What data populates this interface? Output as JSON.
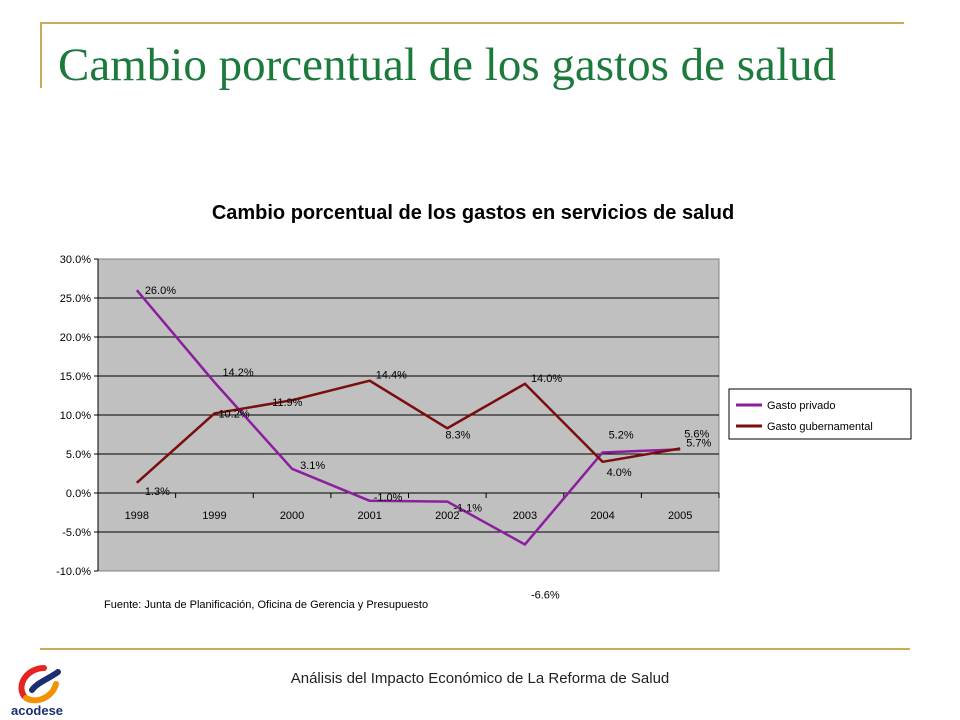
{
  "slide": {
    "title": "Cambio porcentual de los gastos de salud",
    "footer": "Análisis del Impacto Económico de La Reforma de Salud",
    "logo_text": "acodese"
  },
  "colors": {
    "accent_gold": "#c9ac54",
    "title_green": "#1c7a3c",
    "plot_bg": "#c0c0c0",
    "privado": "#8b1f9e",
    "gubernamental": "#7a0e0e"
  },
  "chart_data": {
    "type": "line",
    "title": "Cambio porcentual de los gastos en servicios de salud",
    "categories": [
      "1998",
      "1999",
      "2000",
      "2001",
      "2002",
      "2003",
      "2004",
      "2005"
    ],
    "y_ticks": [
      "30.0%",
      "25.0%",
      "20.0%",
      "15.0%",
      "10.0%",
      "5.0%",
      "0.0%",
      "-5.0%",
      "-10.0%"
    ],
    "ylim": [
      -10,
      30
    ],
    "grid": true,
    "legend_position": "right",
    "source_note": "Fuente: Junta de Planificación, Oficina de Gerencia y Presupuesto",
    "series": [
      {
        "name": "Gasto privado",
        "color": "#8b1f9e",
        "values": [
          26.0,
          14.2,
          3.1,
          -1.0,
          -1.1,
          -6.6,
          5.2,
          5.6
        ],
        "labels": [
          "26.0%",
          "14.2%",
          "3.1%",
          "-1.0%",
          "-1.1%",
          "-6.6%",
          "5.2%",
          "5.6%"
        ]
      },
      {
        "name": "Gasto gubernamental",
        "color": "#7a0e0e",
        "values": [
          1.3,
          10.2,
          11.9,
          14.4,
          8.3,
          14.0,
          4.0,
          5.7
        ],
        "labels": [
          "1.3%",
          "10.2%",
          "11.9%",
          "14.4%",
          "8.3%",
          "14.0%",
          "4.0%",
          "5.7%"
        ]
      }
    ]
  }
}
